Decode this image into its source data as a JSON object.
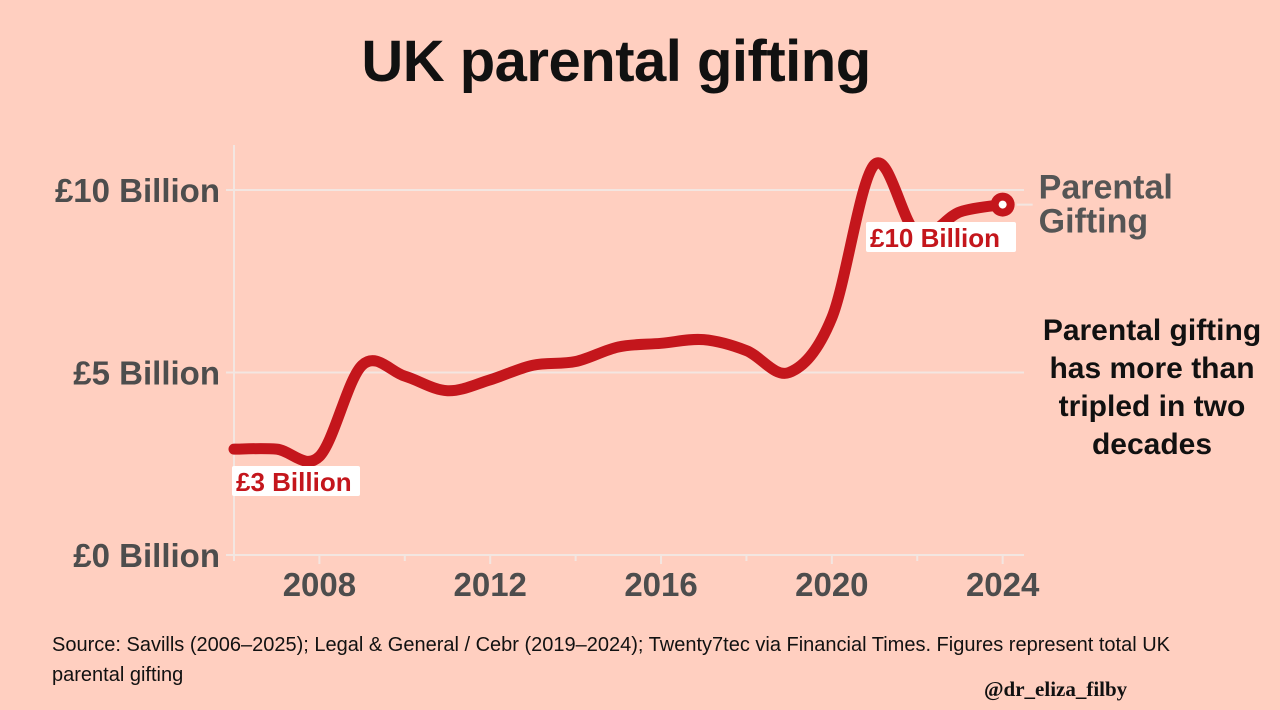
{
  "title": "UK parental gifting",
  "annotation": "Parental gifting has more than tripled in two decades",
  "source": "Source: Savills (2006–2025); Legal & General / Cebr (2019–2024); Twenty7tec via Financial Times. Figures represent total UK parental gifting",
  "handle": "@dr_eliza_filby",
  "chart_data": {
    "type": "line",
    "title": "UK parental gifting",
    "xlabel": "",
    "ylabel": "",
    "x_ticks": [
      "2008",
      "2012",
      "2016",
      "2020",
      "2024"
    ],
    "y_ticks": [
      "£0 Billion",
      "£5 Billion",
      "£10 Billion"
    ],
    "xlim": [
      2006,
      2024.5
    ],
    "ylim": [
      0,
      11
    ],
    "grid": true,
    "color": "#c4161c",
    "series": [
      {
        "name": "Parental Gifting",
        "x": [
          2006,
          2007,
          2008,
          2009,
          2010,
          2011,
          2012,
          2013,
          2014,
          2015,
          2016,
          2017,
          2018,
          2019,
          2020,
          2021,
          2022,
          2023,
          2024
        ],
        "values": [
          2.9,
          2.9,
          2.7,
          5.2,
          4.9,
          4.5,
          4.8,
          5.2,
          5.3,
          5.7,
          5.8,
          5.9,
          5.6,
          5.0,
          6.5,
          10.7,
          8.8,
          9.4,
          9.6
        ]
      }
    ],
    "data_labels": [
      {
        "x": 2006,
        "y": 2.9,
        "text": "£3 Billion"
      },
      {
        "x": 2020.5,
        "y": 8.8,
        "text": "£10 Billion"
      }
    ]
  }
}
